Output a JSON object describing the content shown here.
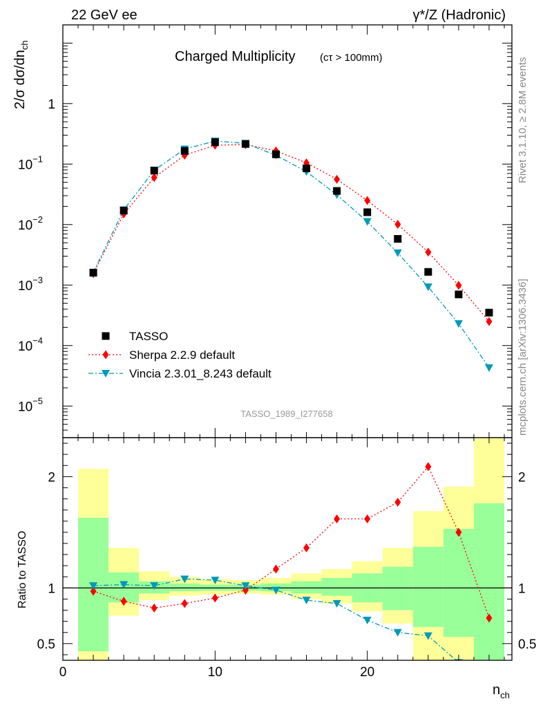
{
  "header": {
    "left": "22 GeV ee",
    "right": "γ*/Z (Hadronic)"
  },
  "side_text": {
    "rivet": "Rivet 3.1.10, ≥ 2.8M events",
    "source": "mcplots.cern.ch [arXiv:1306.3436]"
  },
  "chart_data": {
    "type": "scatter",
    "title": "Charged Multiplicity",
    "subtitle": "(cτ > 100mm)",
    "watermark": "TASSO_1989_I277658",
    "xlabel": "n_ch",
    "xlim": [
      0,
      29.5
    ],
    "x_ticks": [
      0,
      10,
      20
    ],
    "main": {
      "ylabel": "2/σ dσ/dn_ch",
      "yscale": "log",
      "ylim": [
        3e-06,
        20
      ],
      "y_ticks": [
        {
          "value": 1e-05,
          "base": "10",
          "exp": "−5"
        },
        {
          "value": 0.0001,
          "base": "10",
          "exp": "−4"
        },
        {
          "value": 0.001,
          "base": "10",
          "exp": "−3"
        },
        {
          "value": 0.01,
          "base": "10",
          "exp": "−2"
        },
        {
          "value": 0.1,
          "base": "10",
          "exp": "−1"
        },
        {
          "value": 1,
          "base": "1",
          "exp": ""
        }
      ],
      "legend_position": "bottom-left",
      "series": [
        {
          "name": "TASSO",
          "color": "#000000",
          "marker": "square",
          "line": "none",
          "x": [
            2,
            4,
            6,
            8,
            10,
            12,
            14,
            16,
            18,
            20,
            22,
            24,
            26,
            28
          ],
          "y": [
            0.0016,
            0.017,
            0.078,
            0.165,
            0.23,
            0.215,
            0.145,
            0.085,
            0.036,
            0.016,
            0.0058,
            0.00165,
            0.0007,
            0.00035
          ]
        },
        {
          "name": "Sherpa 2.2.9 default",
          "color": "#ff0000",
          "marker": "diamond",
          "line": "dotted",
          "x": [
            2,
            4,
            6,
            8,
            10,
            12,
            14,
            16,
            18,
            20,
            22,
            24,
            26,
            28
          ],
          "y": [
            0.00155,
            0.015,
            0.06,
            0.14,
            0.205,
            0.21,
            0.165,
            0.105,
            0.056,
            0.025,
            0.0101,
            0.0035,
            0.00099,
            0.00025
          ]
        },
        {
          "name": "Vincia 2.3.01_8.243 default",
          "color": "#0099bb",
          "marker": "triangle-down",
          "line": "dashdot",
          "x": [
            2,
            4,
            6,
            8,
            10,
            12,
            14,
            16,
            18,
            20,
            22,
            24,
            26,
            28
          ],
          "y": [
            0.00163,
            0.0175,
            0.079,
            0.177,
            0.24,
            0.22,
            0.14,
            0.075,
            0.031,
            0.0112,
            0.0034,
            0.00093,
            0.00023,
            4.3e-05
          ]
        }
      ]
    },
    "ratio": {
      "ylabel": "Ratio to TASSO",
      "ylim": [
        0.35,
        2.35
      ],
      "y_ticks": [
        0.5,
        1,
        2
      ],
      "reference_line": 1,
      "bins": [
        {
          "lo": 1,
          "hi": 3,
          "stat_lo": 0.43,
          "stat_hi": 1.63,
          "tot_lo": 0.35,
          "tot_hi": 2.07
        },
        {
          "lo": 3,
          "hi": 5,
          "stat_lo": 0.87,
          "stat_hi": 1.14,
          "tot_lo": 0.75,
          "tot_hi": 1.36
        },
        {
          "lo": 5,
          "hi": 7,
          "stat_lo": 0.95,
          "stat_hi": 1.06,
          "tot_lo": 0.89,
          "tot_hi": 1.15
        },
        {
          "lo": 7,
          "hi": 9,
          "stat_lo": 0.97,
          "stat_hi": 1.04,
          "tot_lo": 0.93,
          "tot_hi": 1.1
        },
        {
          "lo": 9,
          "hi": 11,
          "stat_lo": 0.975,
          "stat_hi": 1.03,
          "tot_lo": 0.94,
          "tot_hi": 1.08
        },
        {
          "lo": 11,
          "hi": 13,
          "stat_lo": 0.975,
          "stat_hi": 1.03,
          "tot_lo": 0.95,
          "tot_hi": 1.07
        },
        {
          "lo": 13,
          "hi": 15,
          "stat_lo": 0.97,
          "stat_hi": 1.04,
          "tot_lo": 0.94,
          "tot_hi": 1.09
        },
        {
          "lo": 15,
          "hi": 17,
          "stat_lo": 0.95,
          "stat_hi": 1.06,
          "tot_lo": 0.9,
          "tot_hi": 1.13
        },
        {
          "lo": 17,
          "hi": 19,
          "stat_lo": 0.93,
          "stat_hi": 1.09,
          "tot_lo": 0.86,
          "tot_hi": 1.17
        },
        {
          "lo": 19,
          "hi": 21,
          "stat_lo": 0.87,
          "stat_hi": 1.13,
          "tot_lo": 0.79,
          "tot_hi": 1.24
        },
        {
          "lo": 21,
          "hi": 23,
          "stat_lo": 0.8,
          "stat_hi": 1.19,
          "tot_lo": 0.68,
          "tot_hi": 1.36
        },
        {
          "lo": 23,
          "hi": 25,
          "stat_lo": 0.65,
          "stat_hi": 1.37,
          "tot_lo": 0.35,
          "tot_hi": 1.69
        },
        {
          "lo": 25,
          "hi": 27,
          "stat_lo": 0.56,
          "stat_hi": 1.53,
          "tot_lo": 0.35,
          "tot_hi": 1.91
        },
        {
          "lo": 27,
          "hi": 29,
          "stat_lo": 0.35,
          "stat_hi": 1.76,
          "tot_lo": 0.35,
          "tot_hi": 2.35
        }
      ],
      "series": [
        {
          "name": "Sherpa 2.2.9 default",
          "color": "#ff0000",
          "marker": "diamond",
          "line": "dotted",
          "x": [
            2,
            4,
            6,
            8,
            10,
            12,
            14,
            16,
            18,
            20,
            22,
            24,
            26,
            28
          ],
          "y": [
            0.97,
            0.88,
            0.82,
            0.86,
            0.91,
            0.98,
            1.17,
            1.36,
            1.62,
            1.62,
            1.77,
            2.09,
            1.5,
            0.73
          ]
        },
        {
          "name": "Vincia 2.3.01_8.243 default",
          "color": "#0099bb",
          "marker": "triangle-down",
          "line": "dashdot",
          "x": [
            2,
            4,
            6,
            8,
            10,
            12,
            14,
            16,
            18,
            20,
            22,
            24,
            26
          ],
          "y": [
            1.02,
            1.03,
            1.02,
            1.08,
            1.07,
            1.02,
            0.98,
            0.89,
            0.86,
            0.71,
            0.6,
            0.57,
            0.33
          ]
        }
      ]
    }
  },
  "colors": {
    "stat_band": "#99ff99",
    "total_band": "#ffff99"
  }
}
